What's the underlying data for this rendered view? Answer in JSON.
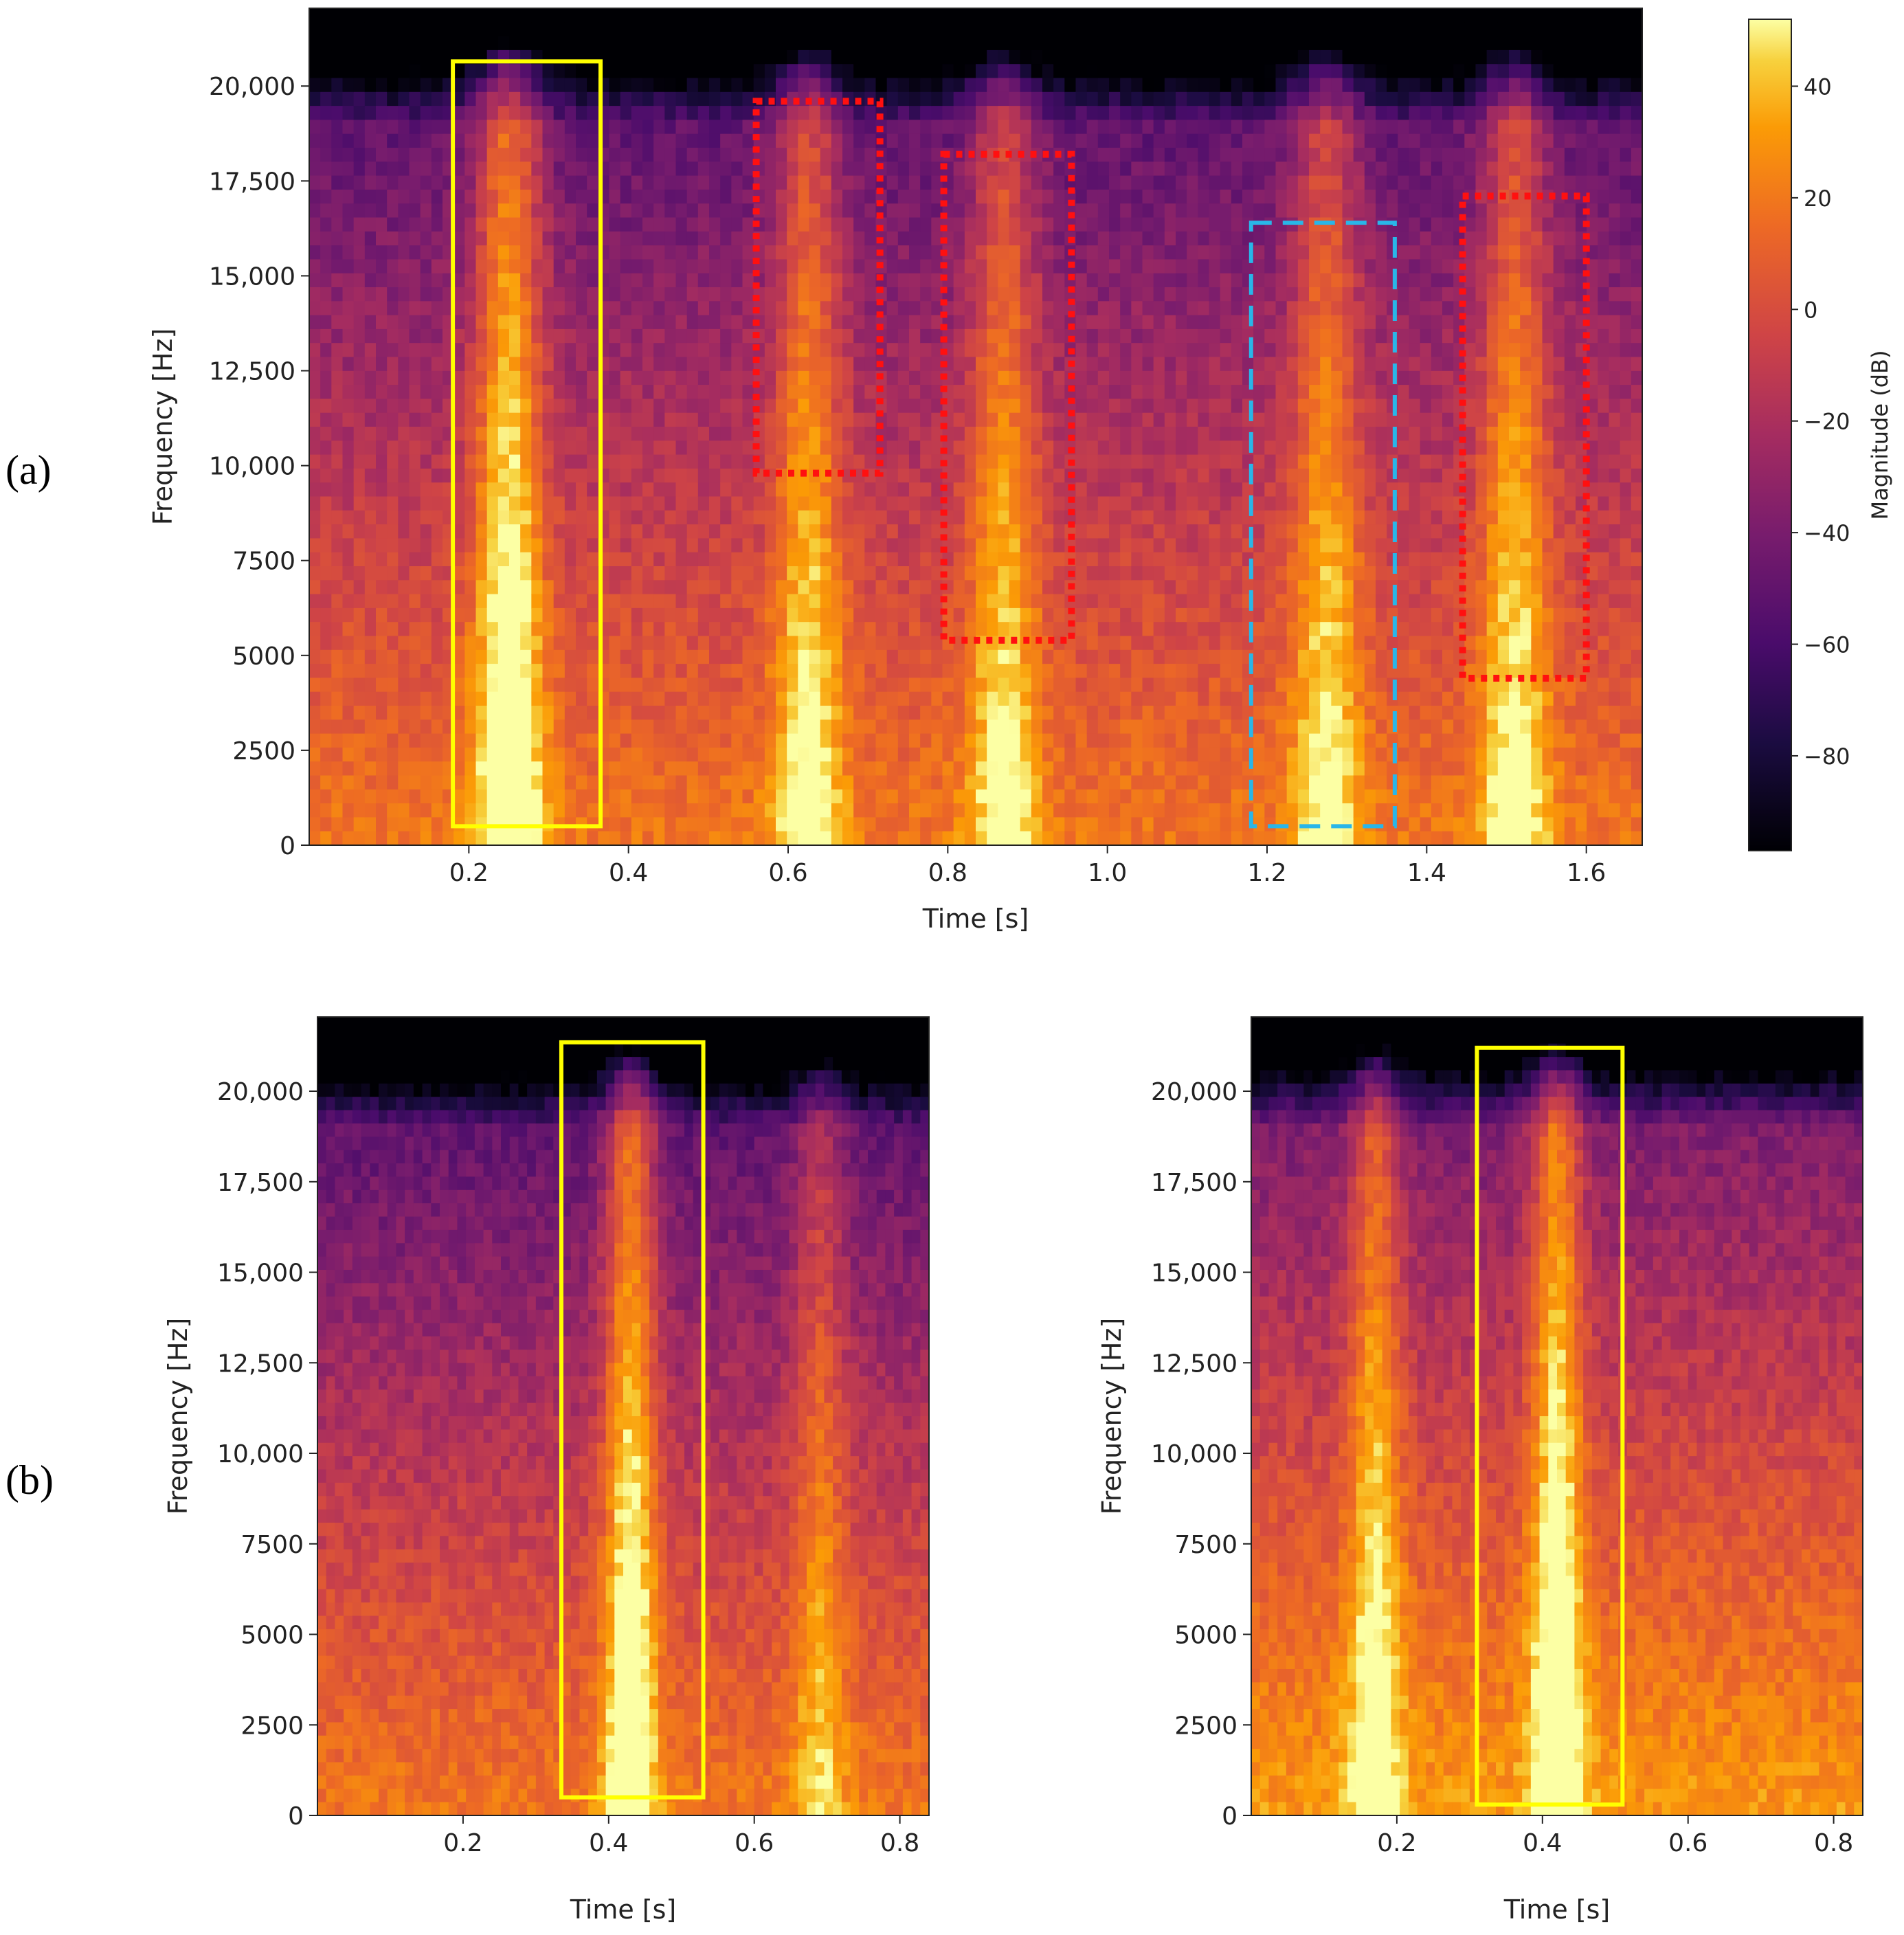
{
  "panels": {
    "a": "(a)",
    "b": "(b)"
  },
  "chart_data": [
    {
      "id": "a",
      "type": "heatmap",
      "chart_kind": "spectrogram",
      "colormap": "inferno",
      "title": "",
      "xlabel": "Time [s]",
      "ylabel": "Frequency [Hz]",
      "xlim": [
        0.0,
        1.67
      ],
      "ylim": [
        0,
        22050
      ],
      "xticks": [
        0.2,
        0.4,
        0.6,
        0.8,
        1.0,
        1.2,
        1.4,
        1.6
      ],
      "xtick_labels": [
        "0.2",
        "0.4",
        "0.6",
        "0.8",
        "1.0",
        "1.2",
        "1.4",
        "1.6"
      ],
      "yticks": [
        0,
        2500,
        5000,
        7500,
        10000,
        12500,
        15000,
        17500,
        20000
      ],
      "ytick_labels": [
        "0",
        "2500",
        "5000",
        "7500",
        "10,000",
        "12,500",
        "15,000",
        "17,500",
        "20,000"
      ],
      "colorbar": {
        "label": "Magnitude (dB)",
        "range": [
          -97,
          52
        ],
        "ticks": [
          40,
          20,
          0,
          -20,
          -40,
          -60,
          -80
        ],
        "tick_labels": [
          "40",
          "20",
          "0",
          "−20",
          "−40",
          "−60",
          "−80"
        ]
      },
      "events": [
        {
          "time": 0.25,
          "strength": 1.0
        },
        {
          "time": 0.625,
          "strength": 0.75
        },
        {
          "time": 0.87,
          "strength": 0.7
        },
        {
          "time": 1.275,
          "strength": 0.7
        },
        {
          "time": 1.51,
          "strength": 0.75
        }
      ],
      "annotations": [
        {
          "style": "solid",
          "color": "#ffff00",
          "x0": 0.18,
          "x1": 0.365,
          "y0": 500,
          "y1": 20650
        },
        {
          "style": "dotted",
          "color": "#ff1010",
          "x0": 0.56,
          "x1": 0.715,
          "y0": 9800,
          "y1": 19600
        },
        {
          "style": "dotted",
          "color": "#ff1010",
          "x0": 0.795,
          "x1": 0.955,
          "y0": 5400,
          "y1": 18200
        },
        {
          "style": "dashed",
          "color": "#29b6e8",
          "x0": 1.18,
          "x1": 1.36,
          "y0": 500,
          "y1": 16400
        },
        {
          "style": "dotted",
          "color": "#ff1010",
          "x0": 1.445,
          "x1": 1.6,
          "y0": 4400,
          "y1": 17100
        }
      ]
    },
    {
      "id": "b-left",
      "type": "heatmap",
      "chart_kind": "spectrogram",
      "colormap": "inferno",
      "title": "",
      "xlabel": "Time [s]",
      "ylabel": "Frequency [Hz]",
      "xlim": [
        0.0,
        0.84
      ],
      "ylim": [
        0,
        22050
      ],
      "xticks": [
        0.2,
        0.4,
        0.6,
        0.8
      ],
      "xtick_labels": [
        "0.2",
        "0.4",
        "0.6",
        "0.8"
      ],
      "yticks": [
        0,
        2500,
        5000,
        7500,
        10000,
        12500,
        15000,
        17500,
        20000
      ],
      "ytick_labels": [
        "0",
        "2500",
        "5000",
        "7500",
        "10,000",
        "12,500",
        "15,000",
        "17,500",
        "20,000"
      ],
      "events": [
        {
          "time": 0.43,
          "strength": 1.0
        },
        {
          "time": 0.69,
          "strength": 0.5
        }
      ],
      "annotations": [
        {
          "style": "solid",
          "color": "#ffff00",
          "x0": 0.335,
          "x1": 0.53,
          "y0": 500,
          "y1": 21350
        }
      ]
    },
    {
      "id": "b-right",
      "type": "heatmap",
      "chart_kind": "spectrogram",
      "colormap": "inferno",
      "title": "",
      "xlabel": "Time [s]",
      "ylabel": "Frequency [Hz]",
      "xlim": [
        0.0,
        0.84
      ],
      "ylim": [
        0,
        22050
      ],
      "xticks": [
        0.2,
        0.4,
        0.6,
        0.8
      ],
      "xtick_labels": [
        "0.2",
        "0.4",
        "0.6",
        "0.8"
      ],
      "yticks": [
        0,
        2500,
        5000,
        7500,
        10000,
        12500,
        15000,
        17500,
        20000
      ],
      "ytick_labels": [
        "0",
        "2500",
        "5000",
        "7500",
        "10,000",
        "12,500",
        "15,000",
        "17,500",
        "20,000"
      ],
      "events": [
        {
          "time": 0.17,
          "strength": 0.7
        },
        {
          "time": 0.42,
          "strength": 0.9
        }
      ],
      "annotations": [
        {
          "style": "solid",
          "color": "#ffff00",
          "x0": 0.31,
          "x1": 0.51,
          "y0": 300,
          "y1": 21200
        }
      ]
    }
  ]
}
